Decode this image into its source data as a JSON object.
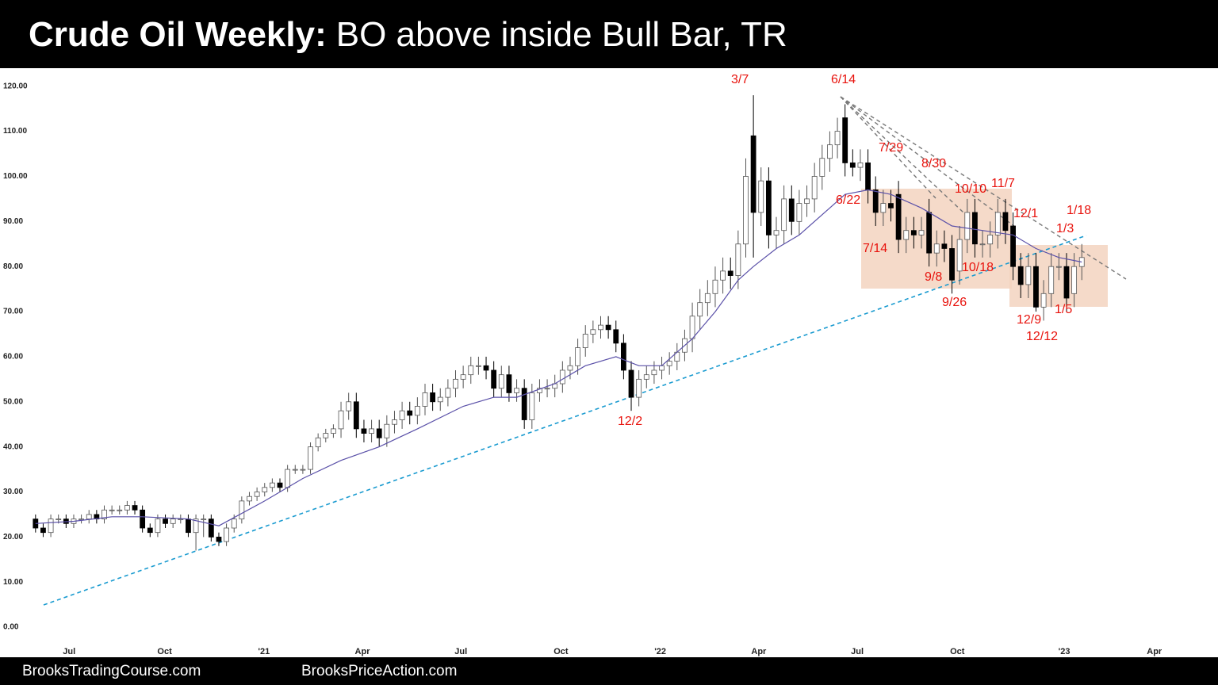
{
  "chart_data": {
    "type": "candlestick",
    "title_bold": "Crude Oil Weekly:",
    "title": "BO above inside Bull Bar, TR",
    "footer_left": "BrooksTradingCourse.com",
    "footer_right": "BrooksPriceAction.com",
    "open": [
      24,
      22,
      21,
      24,
      24,
      23,
      24,
      24,
      25,
      24,
      26,
      26,
      26,
      27,
      26,
      22,
      21,
      24,
      23,
      24,
      24,
      21,
      24,
      24,
      20,
      19,
      22,
      24,
      28,
      29,
      30,
      31,
      32,
      31,
      35,
      35,
      35,
      40,
      42,
      43,
      44,
      48,
      50,
      44,
      43,
      44,
      42,
      45,
      46,
      48,
      47,
      49,
      52,
      50,
      51,
      53,
      55,
      56,
      58,
      58,
      57,
      53,
      56,
      52,
      53,
      46,
      52,
      53,
      53,
      54,
      57,
      58,
      62,
      65,
      66,
      67,
      66,
      63,
      57,
      51,
      55,
      56,
      57,
      58,
      59,
      61,
      64,
      69,
      72,
      74,
      77,
      79,
      78,
      85,
      109,
      92,
      99,
      87,
      88,
      95,
      90,
      94,
      95,
      100,
      104,
      107,
      113,
      103,
      102,
      103,
      97,
      92,
      94,
      96,
      86,
      88,
      87,
      92,
      83,
      85,
      84,
      79,
      86,
      92,
      85,
      85,
      87,
      92,
      89,
      80,
      76,
      80,
      71,
      74,
      80,
      80,
      74,
      80
    ],
    "high": [
      25,
      23,
      25,
      25,
      25,
      25,
      25,
      26,
      26,
      27,
      27,
      27,
      28,
      28,
      27,
      23,
      25,
      25,
      25,
      25,
      25,
      25,
      25,
      25,
      21,
      23,
      25,
      29,
      30,
      31,
      32,
      33,
      33,
      36,
      36,
      36,
      41,
      43,
      44,
      45,
      50,
      52,
      52,
      46,
      46,
      46,
      47,
      48,
      50,
      50,
      51,
      54,
      54,
      53,
      55,
      57,
      58,
      60,
      60,
      60,
      59,
      58,
      58,
      55,
      55,
      54,
      55,
      55,
      56,
      59,
      60,
      64,
      67,
      68,
      69,
      69,
      68,
      65,
      59,
      57,
      58,
      59,
      60,
      61,
      63,
      66,
      72,
      75,
      77,
      80,
      82,
      82,
      88,
      104,
      118,
      102,
      102,
      91,
      98,
      98,
      97,
      98,
      103,
      107,
      110,
      113,
      116,
      106,
      106,
      106,
      100,
      97,
      97,
      99,
      91,
      91,
      91,
      95,
      88,
      88,
      87,
      89,
      95,
      95,
      88,
      90,
      95,
      95,
      92,
      83,
      83,
      83,
      77,
      83,
      83,
      83,
      83,
      85
    ],
    "low": [
      21,
      20,
      20,
      23,
      22,
      22,
      23,
      23,
      23,
      23,
      25,
      25,
      25,
      25,
      21,
      20,
      20,
      22,
      22,
      23,
      20,
      17,
      20,
      19,
      18,
      18,
      21,
      23,
      27,
      28,
      29,
      30,
      30,
      30,
      34,
      34,
      34,
      39,
      41,
      42,
      42,
      46,
      42,
      41,
      41,
      40,
      40,
      43,
      44,
      45,
      45,
      47,
      48,
      48,
      49,
      51,
      53,
      54,
      56,
      55,
      51,
      51,
      50,
      50,
      44,
      44,
      50,
      51,
      51,
      52,
      55,
      56,
      60,
      63,
      64,
      64,
      61,
      55,
      48,
      49,
      53,
      54,
      55,
      56,
      57,
      59,
      61,
      66,
      69,
      71,
      74,
      75,
      75,
      82,
      82,
      89,
      84,
      84,
      85,
      87,
      87,
      91,
      92,
      97,
      101,
      104,
      100,
      100,
      99,
      94,
      89,
      89,
      90,
      83,
      83,
      84,
      84,
      80,
      80,
      81,
      74,
      76,
      83,
      82,
      82,
      82,
      84,
      85,
      77,
      73,
      73,
      70,
      68,
      71,
      77,
      70,
      71,
      77
    ],
    "close": [
      22,
      21,
      24,
      24,
      23,
      24,
      24,
      25,
      24,
      26,
      26,
      26,
      27,
      26,
      22,
      21,
      24,
      23,
      24,
      24,
      21,
      24,
      24,
      20,
      19,
      22,
      24,
      28,
      29,
      30,
      31,
      32,
      31,
      35,
      35,
      35,
      40,
      42,
      43,
      44,
      48,
      50,
      44,
      43,
      44,
      42,
      45,
      46,
      48,
      47,
      49,
      52,
      50,
      51,
      53,
      55,
      56,
      58,
      58,
      57,
      53,
      56,
      52,
      53,
      46,
      52,
      53,
      53,
      54,
      57,
      58,
      62,
      65,
      66,
      67,
      66,
      63,
      57,
      51,
      55,
      56,
      57,
      58,
      59,
      61,
      64,
      69,
      72,
      74,
      77,
      79,
      78,
      85,
      100,
      92,
      99,
      87,
      88,
      95,
      90,
      94,
      95,
      100,
      104,
      107,
      110,
      103,
      102,
      103,
      97,
      92,
      94,
      93,
      86,
      88,
      87,
      88,
      83,
      85,
      84,
      77,
      86,
      92,
      85,
      85,
      87,
      92,
      88,
      80,
      76,
      80,
      71,
      74,
      80,
      80,
      73,
      80,
      82
    ],
    "up_color": "#ffffff",
    "down_color": "#000000",
    "edge_color": "#555555",
    "ema": {
      "color": "#5a50a8",
      "x": [
        0,
        5,
        10,
        14,
        20,
        24,
        30,
        35,
        40,
        45,
        50,
        56,
        60,
        63,
        68,
        72,
        76,
        79,
        82,
        86,
        89,
        92,
        94,
        97,
        100,
        104,
        106,
        109,
        112,
        116,
        120,
        124,
        128,
        131,
        134,
        137
      ],
      "values": [
        23,
        23.5,
        24.5,
        24.5,
        24,
        22.5,
        28,
        33,
        37,
        40,
        44,
        49,
        51,
        51,
        54,
        58,
        60,
        58,
        58,
        64,
        70,
        77,
        80,
        84,
        87,
        93,
        96,
        97,
        96,
        93,
        89,
        88,
        87,
        84,
        82,
        81
      ]
    },
    "xlim": [
      -0.5,
      148.5
    ],
    "xticks": [
      {
        "value": 4.4,
        "label": "Jul"
      },
      {
        "value": 16.9,
        "label": "Oct"
      },
      {
        "value": 29.9,
        "label": "'21"
      },
      {
        "value": 42.8,
        "label": "Apr"
      },
      {
        "value": 55.7,
        "label": "Jul"
      },
      {
        "value": 68.8,
        "label": "Oct"
      },
      {
        "value": 81.8,
        "label": "'22"
      },
      {
        "value": 94.7,
        "label": "Apr"
      },
      {
        "value": 107.6,
        "label": "Jul"
      },
      {
        "value": 120.7,
        "label": "Oct"
      },
      {
        "value": 134.7,
        "label": "'23"
      },
      {
        "value": 146.5,
        "label": "Apr"
      }
    ],
    "ylim": [
      -3.5,
      124
    ],
    "yticks": [
      {
        "value": 0,
        "label": "0.00"
      },
      {
        "value": 10,
        "label": "10.00"
      },
      {
        "value": 20,
        "label": "20.00"
      },
      {
        "value": 30,
        "label": "30.00"
      },
      {
        "value": 40,
        "label": "40.00"
      },
      {
        "value": 50,
        "label": "50.00"
      },
      {
        "value": 60,
        "label": "60.00"
      },
      {
        "value": 70,
        "label": "70.00"
      },
      {
        "value": 80,
        "label": "80.00"
      },
      {
        "value": 90,
        "label": "90.00"
      },
      {
        "value": 100,
        "label": "100.00"
      },
      {
        "value": 110,
        "label": "110.00"
      },
      {
        "value": 120,
        "label": "120.00"
      }
    ],
    "annotations": [
      "3/7",
      "6/14",
      "7/29",
      "8/30",
      "10/10",
      "11/7",
      "6/22",
      "12/1",
      "1/18",
      "1/3",
      "7/14",
      "10/18",
      "9/8",
      "9/26",
      "1/5",
      "12/9",
      "12/12",
      "12/2"
    ]
  }
}
